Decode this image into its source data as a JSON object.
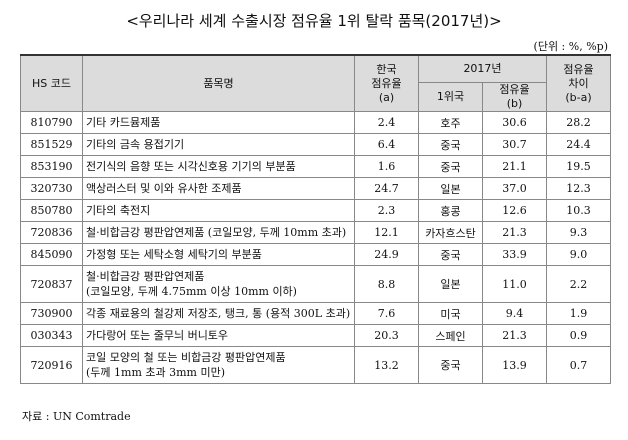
{
  "title": "<우리나라 세계 수출시장 점유율 1위 탈락 품목(2017년)>",
  "unit": "(단위 : %, %p)",
  "headers": {
    "hs_code": "HS 코드",
    "item": "품목명",
    "korea_share_l1": "한국",
    "korea_share_l2": "점유율",
    "korea_share_l3": "(a)",
    "year_top": "2017년",
    "rank1": "1위국",
    "share_b_l1": "점유율",
    "share_b_l2": "(b)",
    "diff_l1": "점유율",
    "diff_l2": "차이",
    "diff_l3": "(b-a)"
  },
  "rows": [
    {
      "code": "810790",
      "item_l1": "기타 카드뮴제품",
      "item_l2": "",
      "korea": "2.4",
      "country": "호주",
      "share": "30.6",
      "diff": "28.2"
    },
    {
      "code": "851529",
      "item_l1": "기타의 금속 용접기기",
      "item_l2": "",
      "korea": "6.4",
      "country": "중국",
      "share": "30.7",
      "diff": "24.4"
    },
    {
      "code": "853190",
      "item_l1": "전기식의 음향 또는 시각신호용 기기의 부분품",
      "item_l2": "",
      "korea": "1.6",
      "country": "중국",
      "share": "21.1",
      "diff": "19.5"
    },
    {
      "code": "320730",
      "item_l1": "액상러스터 및 이와 유사한 조제품",
      "item_l2": "",
      "korea": "24.7",
      "country": "일본",
      "share": "37.0",
      "diff": "12.3"
    },
    {
      "code": "850780",
      "item_l1": "기타의 축전지",
      "item_l2": "",
      "korea": "2.3",
      "country": "홍콩",
      "share": "12.6",
      "diff": "10.3"
    },
    {
      "code": "720836",
      "item_l1": "철·비합금강 평판압연제품 (코일모양, 두께 10mm 초과)",
      "item_l2": "",
      "korea": "12.1",
      "country": "카자흐스탄",
      "share": "21.3",
      "diff": "9.3"
    },
    {
      "code": "845090",
      "item_l1": "가정형 또는 세탁소형 세탁기의 부분품",
      "item_l2": "",
      "korea": "24.9",
      "country": "중국",
      "share": "33.9",
      "diff": "9.0"
    },
    {
      "code": "720837",
      "item_l1": "철·비합금강 평판압연제품",
      "item_l2": "(코일모양, 두께 4.75mm 이상 10mm 이하)",
      "korea": "8.8",
      "country": "일본",
      "share": "11.0",
      "diff": "2.2"
    },
    {
      "code": "730900",
      "item_l1": "각종 재료용의 철강제 저장조, 탱크, 통 (용적 300L 초과)",
      "item_l2": "",
      "korea": "7.6",
      "country": "미국",
      "share": "9.4",
      "diff": "1.9"
    },
    {
      "code": "030343",
      "item_l1": "가다랑어 또는 줄무늬 버니토우",
      "item_l2": "",
      "korea": "20.3",
      "country": "스페인",
      "share": "21.3",
      "diff": "0.9"
    },
    {
      "code": "720916",
      "item_l1": "코일 모양의 철 또는 비합금강 평판압연제품",
      "item_l2": "(두께 1mm 초과 3mm 미만)",
      "korea": "13.2",
      "country": "중국",
      "share": "13.9",
      "diff": "0.7"
    }
  ],
  "source": "자료 : UN Comtrade"
}
